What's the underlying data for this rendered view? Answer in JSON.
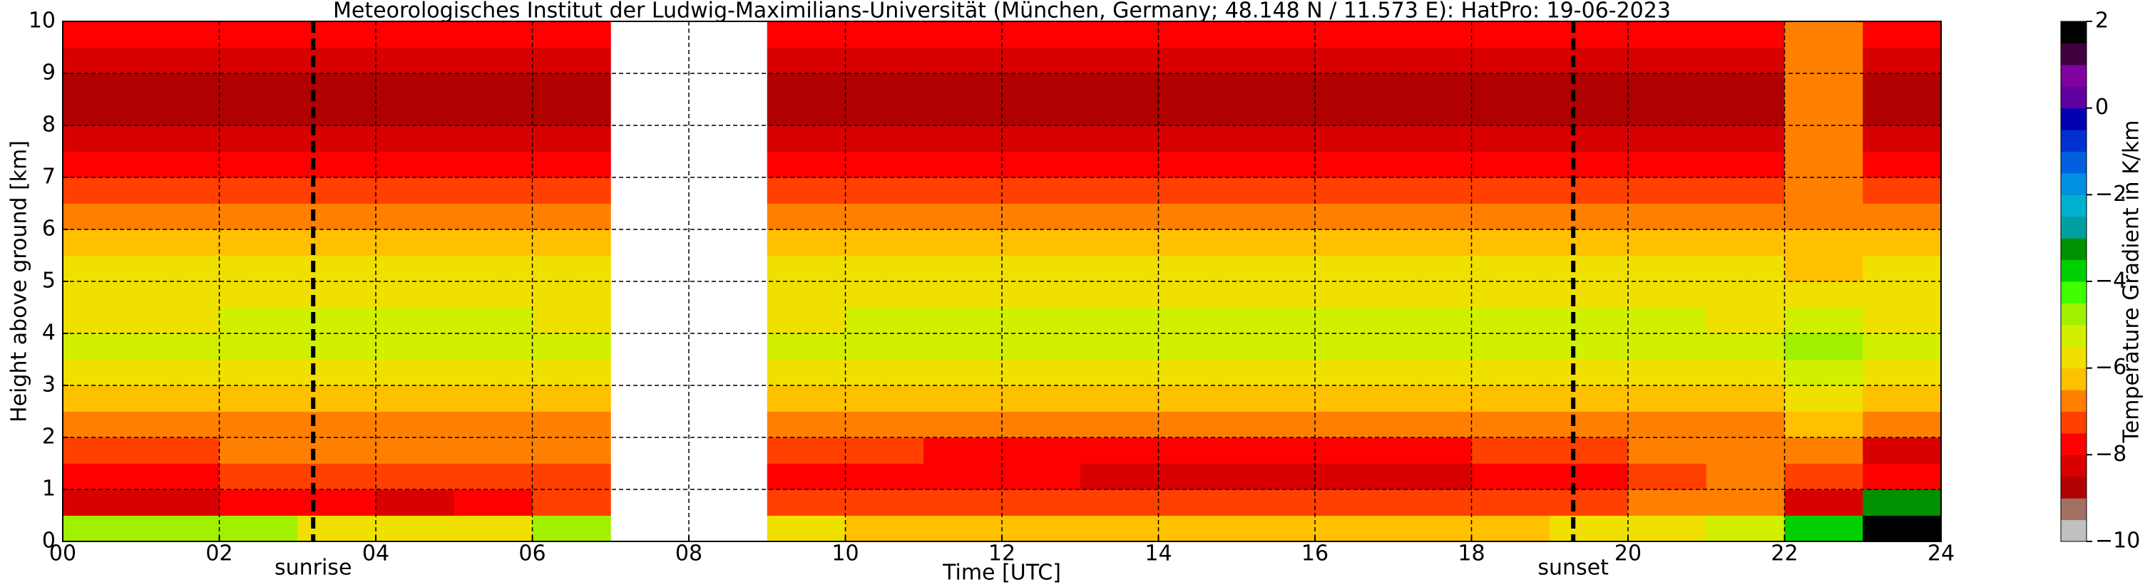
{
  "chart_data": {
    "type": "heatmap",
    "title": "Meteorologisches Institut der Ludwig-Maximilians-Universität (München, Germany; 48.148 N / 11.573 E):    HatPro: 19-06-2023",
    "x_label": "Time [UTC]",
    "y_label": "Height above ground [km]",
    "colorbar_label": "Temperature Gradient in K/km",
    "x": [
      0.5,
      1.5,
      2.5,
      3.5,
      4.5,
      5.5,
      6.5,
      7.5,
      8.5,
      9.5,
      10.5,
      11.5,
      12.5,
      13.5,
      14.5,
      15.5,
      16.5,
      17.5,
      18.5,
      19.5,
      20.5,
      21.5,
      22.5,
      23.5
    ],
    "y": [
      0.25,
      0.75,
      1.25,
      1.75,
      2.25,
      2.75,
      3.25,
      3.75,
      4.25,
      4.75,
      5.25,
      5.75,
      6.25,
      6.75,
      7.25,
      7.75,
      8.25,
      8.75,
      9.25,
      9.75
    ],
    "z": [
      [
        -5,
        -5,
        -5,
        -6,
        -6,
        -6,
        -5,
        null,
        null,
        -6,
        -6.5,
        -6.5,
        -6.5,
        -6.5,
        -6.5,
        -6.5,
        -6.5,
        -6.5,
        -6.5,
        -6,
        -6,
        -5.5,
        -4,
        1.5
      ],
      [
        -8.5,
        -8.5,
        -8,
        -8,
        -8.5,
        -8,
        -7.5,
        null,
        null,
        -7.5,
        -7.5,
        -7.5,
        -7.5,
        -7.5,
        -7.5,
        -7.5,
        -7.5,
        -7.5,
        -7.5,
        -7.5,
        -7,
        -7,
        -8.5,
        -3.5
      ],
      [
        -8,
        -8,
        -7.5,
        -7.5,
        -7.5,
        -7.5,
        -7.5,
        null,
        null,
        -8,
        -8,
        -8,
        -8,
        -8.5,
        -8.5,
        -8.5,
        -8.5,
        -8.5,
        -8,
        -8,
        -7.5,
        -7,
        -7.5,
        -8
      ],
      [
        -7.5,
        -7.5,
        -7,
        -7,
        -7,
        -7,
        -7,
        null,
        null,
        -7.5,
        -7.5,
        -8,
        -8,
        -8,
        -8,
        -8,
        -8,
        -8,
        -7.5,
        -7.5,
        -7,
        -7,
        -7,
        -8.5
      ],
      [
        -7,
        -7,
        -7,
        -7,
        -7,
        -7,
        -7,
        null,
        null,
        -7,
        -7,
        -7,
        -7,
        -7,
        -7,
        -7,
        -7,
        -7,
        -7,
        -7,
        -7,
        -7,
        -6.5,
        -7
      ],
      [
        -6.5,
        -6.5,
        -6.5,
        -6.5,
        -6.5,
        -6.5,
        -6.5,
        null,
        null,
        -6.5,
        -6.5,
        -6.5,
        -6.5,
        -6.5,
        -6.5,
        -6.5,
        -6.5,
        -6.5,
        -6.5,
        -6.5,
        -6.5,
        -6.5,
        -6,
        -6.5
      ],
      [
        -6,
        -6,
        -6,
        -6,
        -6,
        -6,
        -6,
        null,
        null,
        -6,
        -6,
        -6,
        -6,
        -6,
        -6,
        -6,
        -6,
        -6,
        -6,
        -6,
        -6,
        -6,
        -5.5,
        -6
      ],
      [
        -5.5,
        -5.5,
        -5.5,
        -5.5,
        -5.5,
        -5.5,
        -5.5,
        null,
        null,
        -5.5,
        -5.5,
        -5.5,
        -5.5,
        -5.5,
        -5.5,
        -5.5,
        -5.5,
        -5.5,
        -5.5,
        -5.5,
        -5.5,
        -5.5,
        -5,
        -5.5
      ],
      [
        -6,
        -6,
        -5.5,
        -5.5,
        -5.5,
        -5.5,
        -6,
        null,
        null,
        -6,
        -5.5,
        -5.5,
        -5.5,
        -5.5,
        -5.5,
        -5.5,
        -5.5,
        -5.5,
        -5.5,
        -5.5,
        -5.5,
        -6,
        -5.5,
        -6
      ],
      [
        -6,
        -6,
        -6,
        -6,
        -6,
        -6,
        -6,
        null,
        null,
        -6,
        -6,
        -6,
        -6,
        -6,
        -6,
        -6,
        -6,
        -6,
        -6,
        -6,
        -6,
        -6,
        -6,
        -6
      ],
      [
        -6,
        -6,
        -6,
        -6,
        -6,
        -6,
        -6,
        null,
        null,
        -6,
        -6,
        -6,
        -6,
        -6,
        -6,
        -6,
        -6,
        -6,
        -6,
        -6,
        -6,
        -6,
        -6.5,
        -6
      ],
      [
        -6.5,
        -6.5,
        -6.5,
        -6.5,
        -6.5,
        -6.5,
        -6.5,
        null,
        null,
        -6.5,
        -6.5,
        -6.5,
        -6.5,
        -6.5,
        -6.5,
        -6.5,
        -6.5,
        -6.5,
        -6.5,
        -6.5,
        -6.5,
        -6.5,
        -6.5,
        -6.5
      ],
      [
        -7,
        -7,
        -7,
        -7,
        -7,
        -7,
        -7,
        null,
        null,
        -7,
        -7,
        -7,
        -7,
        -7,
        -7,
        -7,
        -7,
        -7,
        -7,
        -7,
        -7,
        -7,
        -7,
        -7
      ],
      [
        -7.5,
        -7.5,
        -7.5,
        -7.5,
        -7.5,
        -7.5,
        -7.5,
        null,
        null,
        -7.5,
        -7.5,
        -7.5,
        -7.5,
        -7.5,
        -7.5,
        -7.5,
        -7.5,
        -7.5,
        -7.5,
        -7.5,
        -7.5,
        -7.5,
        -7,
        -7.5
      ],
      [
        -8,
        -8,
        -8,
        -8,
        -8,
        -8,
        -8,
        null,
        null,
        -8,
        -8,
        -8,
        -8,
        -8,
        -8,
        -8,
        -8,
        -8,
        -8,
        -8,
        -8,
        -8,
        -7,
        -8
      ],
      [
        -8.5,
        -8.5,
        -8.5,
        -8.5,
        -8.5,
        -8.5,
        -8.5,
        null,
        null,
        -8.5,
        -8.5,
        -8.5,
        -8.5,
        -8.5,
        -8.5,
        -8.5,
        -8.5,
        -8.5,
        -8.5,
        -8.5,
        -8.5,
        -8.5,
        -7,
        -8.5
      ],
      [
        -9,
        -9,
        -9,
        -9,
        -9,
        -9,
        -9,
        null,
        null,
        -9,
        -9,
        -9,
        -9,
        -9,
        -9,
        -9,
        -9,
        -9,
        -9,
        -9,
        -9,
        -9,
        -7,
        -9
      ],
      [
        -9,
        -9,
        -9,
        -9,
        -9,
        -9,
        -9,
        null,
        null,
        -9,
        -9,
        -9,
        -9,
        -9,
        -9,
        -9,
        -9,
        -9,
        -9,
        -9,
        -9,
        -9,
        -7,
        -9
      ],
      [
        -8.5,
        -8.5,
        -8.5,
        -8.5,
        -8.5,
        -8.5,
        -8.5,
        null,
        null,
        -8.5,
        -8.5,
        -8.5,
        -8.5,
        -8.5,
        -8.5,
        -8.5,
        -8.5,
        -8.5,
        -8.5,
        -8.5,
        -8.5,
        -8.5,
        -7,
        -8.5
      ],
      [
        -8,
        -8,
        -8,
        -8,
        -8,
        -8,
        -8,
        null,
        null,
        -8,
        -8,
        -8,
        -8,
        -8,
        -8,
        -8,
        -8,
        -8,
        -8,
        -8,
        -8,
        -8,
        -7,
        -8
      ]
    ],
    "xlim": [
      0,
      24
    ],
    "xticks": [
      {
        "value": 0,
        "label": "00"
      },
      {
        "value": 2,
        "label": "02"
      },
      {
        "value": 4,
        "label": "04"
      },
      {
        "value": 6,
        "label": "06"
      },
      {
        "value": 8,
        "label": "08"
      },
      10,
      12,
      14,
      16,
      18,
      20,
      22,
      24
    ],
    "ylim": [
      0,
      10
    ],
    "yticks": [
      0,
      1,
      2,
      3,
      4,
      5,
      6,
      7,
      8,
      9,
      10
    ],
    "zlim": [
      -10,
      2
    ],
    "zticks": [
      {
        "value": 2,
        "label": "2"
      },
      {
        "value": 0,
        "label": "0"
      },
      {
        "value": -2,
        "label": "−2"
      },
      {
        "value": -4,
        "label": "−4"
      },
      {
        "value": -6,
        "label": "−6"
      },
      {
        "value": -8,
        "label": "−8"
      },
      {
        "value": -10,
        "label": "−10"
      }
    ],
    "colors": [
      "#c0c0c0",
      "#a07060",
      "#b00000",
      "#d80000",
      "#ff0000",
      "#ff4000",
      "#ff8000",
      "#ffc000",
      "#f0e000",
      "#d0f000",
      "#a0f000",
      "#40ff00",
      "#00d000",
      "#009000",
      "#00a0a0",
      "#00b0d0",
      "#0090e0",
      "#0060e0",
      "#0030d0",
      "#0000b0",
      "#6000a0",
      "#8000a0",
      "#400040",
      "#000000"
    ],
    "grid": true,
    "annotations": [
      {
        "x": 3.2,
        "label": "sunrise"
      },
      {
        "x": 19.3,
        "label": "sunset"
      }
    ]
  }
}
